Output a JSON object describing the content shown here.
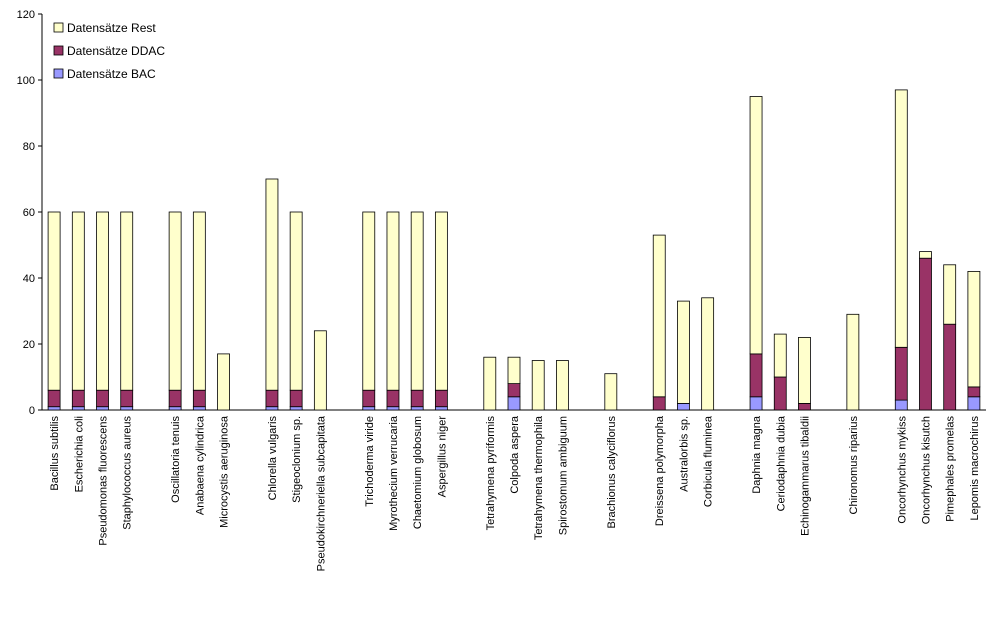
{
  "chart_data": {
    "type": "stacked_bar",
    "categories": [
      "Bacillus subtilis",
      "Escherichia coli",
      "Pseudomonas fluorescens",
      "Staphylococcus aureus",
      null,
      "Oscillatoria tenuis",
      "Anabaena cylindrica",
      "Microcystis aeruginosa",
      null,
      "Chlorella vulgaris",
      "Stigeoclonium sp.",
      "Pseudokirchneriella subcapitata",
      null,
      "Trichoderma viride",
      "Myrothecium verrucaria",
      "Chaetomium globosum",
      "Aspergillus niger",
      null,
      "Tetrahymena pyriformis",
      "Colpoda aspera",
      "Tetrahymena thermophila",
      "Spirostomum ambiguum",
      null,
      "Brachionus calyciflorus",
      null,
      "Dreissena polymorpha",
      "Australorbis sp.",
      "Corbicula fluminea",
      null,
      "Daphnia magna",
      "Ceriodaphnia dubia",
      "Echinogammarus tibaldii",
      null,
      "Chironomus riparius",
      null,
      "Oncorhynchus mykiss",
      "Oncorhynchus kisutch",
      "Pimephales promelas",
      "Lepomis macrochirus"
    ],
    "series": [
      {
        "name": "Datensätze BAC",
        "color": "#9999ff",
        "values": [
          1,
          1,
          1,
          1,
          null,
          1,
          1,
          0,
          null,
          1,
          1,
          0,
          null,
          1,
          1,
          1,
          1,
          null,
          0,
          4,
          0,
          0,
          null,
          0,
          null,
          0,
          2,
          0,
          null,
          4,
          0,
          0,
          null,
          0,
          null,
          3,
          0,
          0,
          4
        ]
      },
      {
        "name": "Datensätze DDAC",
        "color": "#993366",
        "values": [
          5,
          5,
          5,
          5,
          null,
          5,
          5,
          0,
          null,
          5,
          5,
          0,
          null,
          5,
          5,
          5,
          5,
          null,
          0,
          4,
          0,
          0,
          null,
          0,
          null,
          4,
          0,
          0,
          null,
          13,
          10,
          2,
          null,
          0,
          null,
          16,
          46,
          26,
          3
        ]
      },
      {
        "name": "Datensätze Rest",
        "color": "#ffffcc",
        "values": [
          54,
          54,
          54,
          54,
          null,
          54,
          54,
          17,
          null,
          64,
          54,
          24,
          null,
          54,
          54,
          54,
          54,
          null,
          16,
          8,
          15,
          15,
          null,
          11,
          null,
          49,
          31,
          34,
          null,
          78,
          13,
          20,
          null,
          29,
          null,
          78,
          2,
          18,
          35
        ]
      }
    ],
    "ylim": [
      0,
      120
    ],
    "yticks": [
      0,
      20,
      40,
      60,
      80,
      100,
      120
    ],
    "legend": "top-left"
  }
}
